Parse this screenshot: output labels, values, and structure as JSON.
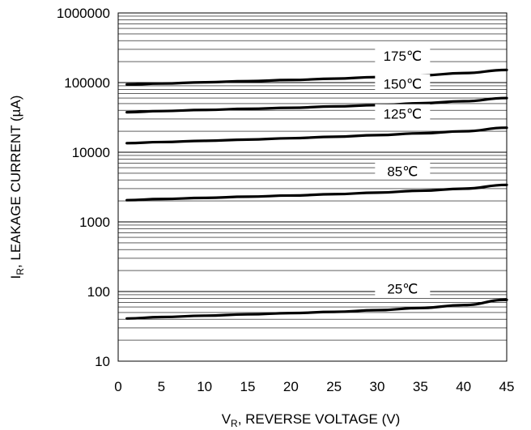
{
  "chart_data": {
    "type": "line",
    "title": "",
    "xlabel": {
      "main": "V",
      "sub": "R",
      "rest": ", REVERSE VOLTAGE (V)"
    },
    "ylabel": {
      "main": "I",
      "sub": "R",
      "rest": ", LEAKAGE CURRENT (µA)"
    },
    "x_scale": "linear",
    "y_scale": "log",
    "xlim": [
      0,
      45
    ],
    "ylim": [
      10,
      1000000
    ],
    "x_ticks": [
      "0",
      "5",
      "10",
      "15",
      "20",
      "25",
      "30",
      "35",
      "40",
      "45"
    ],
    "y_ticks": [
      "10",
      "100",
      "1000",
      "10000",
      "100000",
      "1000000"
    ],
    "grid": true,
    "series": [
      {
        "name": "175℃",
        "x": [
          1,
          5,
          10,
          15,
          20,
          25,
          30,
          35,
          40,
          45
        ],
        "y": [
          94000,
          97000,
          101000,
          105000,
          109000,
          114000,
          120000,
          127000,
          137000,
          152000
        ]
      },
      {
        "name": "150℃",
        "x": [
          1,
          5,
          10,
          15,
          20,
          25,
          30,
          35,
          40,
          45
        ],
        "y": [
          37500,
          39000,
          40500,
          42000,
          43500,
          45500,
          47500,
          50500,
          54000,
          60000
        ]
      },
      {
        "name": "125℃",
        "x": [
          1,
          5,
          10,
          15,
          20,
          25,
          30,
          35,
          40,
          45
        ],
        "y": [
          13500,
          14000,
          14600,
          15200,
          15900,
          16700,
          17600,
          18700,
          20000,
          22500
        ]
      },
      {
        "name": "85℃",
        "x": [
          1,
          5,
          10,
          15,
          20,
          25,
          30,
          35,
          40,
          45
        ],
        "y": [
          2050,
          2130,
          2210,
          2300,
          2390,
          2500,
          2630,
          2800,
          3000,
          3400
        ]
      },
      {
        "name": "25℃",
        "x": [
          1,
          5,
          10,
          15,
          20,
          25,
          30,
          35,
          40,
          45
        ],
        "y": [
          41,
          43,
          45,
          47,
          49,
          51,
          54,
          58,
          64,
          76
        ]
      }
    ]
  }
}
